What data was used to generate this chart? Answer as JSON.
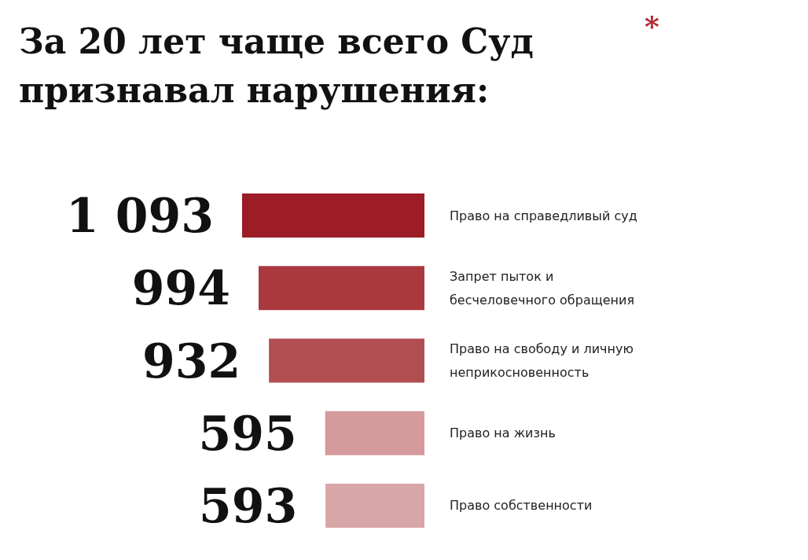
{
  "chart_data": {
    "type": "bar",
    "orientation": "horizontal",
    "title": "За 20 лет чаще всего Суд признавал нарушения:",
    "annotations": [
      "*"
    ],
    "categories": [
      "Право на справедливый суд",
      "Запрет пыток и бесчеловечного обращения",
      "Право на свободу и личную неприкосновенность",
      "Право на жизнь",
      "Право собственности"
    ],
    "values": [
      1093,
      994,
      932,
      595,
      593
    ],
    "value_labels": [
      "1 093",
      "994",
      "932",
      "595",
      "593"
    ],
    "colors": [
      "#9c1d25",
      "#a9393e",
      "#b14e52",
      "#d49a9c",
      "#d9a6a7"
    ]
  }
}
